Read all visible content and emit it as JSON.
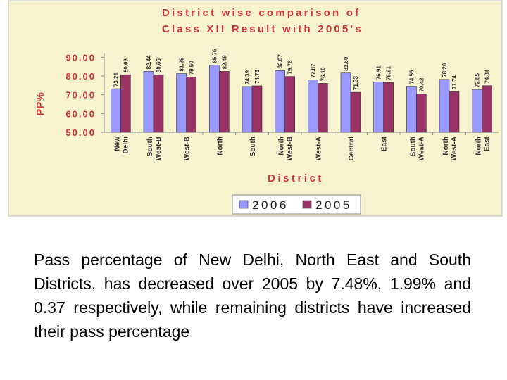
{
  "chart_data": {
    "type": "bar",
    "title": [
      "District wise comparison of",
      "Class XII Result with 2005's"
    ],
    "y_label": "PP%",
    "x_label": "District",
    "categories": [
      [
        "New",
        "Delhi"
      ],
      [
        "South",
        "West-B"
      ],
      [
        "West-B"
      ],
      [
        "North"
      ],
      [
        "South"
      ],
      [
        "North",
        "West-B"
      ],
      [
        "West-A"
      ],
      [
        "Central"
      ],
      [
        "East"
      ],
      [
        "South",
        "West-A"
      ],
      [
        "North",
        "West-A"
      ],
      [
        "North",
        "East"
      ]
    ],
    "series": [
      {
        "name": "2006",
        "color": "#9999ff",
        "values": [
          73.21,
          82.44,
          81.29,
          85.76,
          74.39,
          82.87,
          77.87,
          81.6,
          76.91,
          74.55,
          78.2,
          72.85
        ],
        "value_labels": [
          "73.21",
          "82.44",
          "81.29",
          "85.76",
          "74.39",
          "82.87",
          "77.87",
          "81.60",
          "76.91",
          "74.55",
          "78.20",
          "72.85"
        ]
      },
      {
        "name": "2005",
        "color": "#993366",
        "values": [
          80.69,
          80.66,
          79.5,
          82.49,
          74.76,
          79.78,
          76.1,
          71.33,
          76.61,
          70.42,
          71.74,
          74.84
        ],
        "value_labels": [
          "80.69",
          "80.66",
          "79.50",
          "82.49",
          "74.76",
          "79.78",
          "76.10",
          "71.33",
          "76.61",
          "70.42",
          "71.74",
          "74.84"
        ]
      }
    ],
    "ylim": [
      50,
      92
    ],
    "yticks": [
      {
        "value": 50,
        "label": "50.00"
      },
      {
        "value": 60,
        "label": "60.00"
      },
      {
        "value": 70,
        "label": "70.00"
      },
      {
        "value": 80,
        "label": "80.00"
      },
      {
        "value": 90,
        "label": "90.00"
      }
    ],
    "legend": "bottom"
  },
  "caption": "Pass percentage of New Delhi, North East and South Districts, has decreased over 2005 by 7.48%, 1.99% and 0.37 respectively, while remaining districts have increased their pass percentage"
}
